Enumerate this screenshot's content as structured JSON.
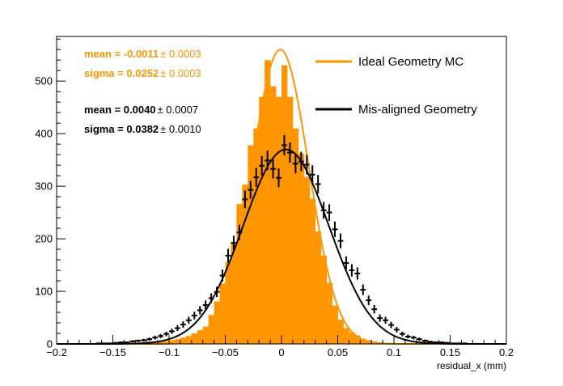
{
  "colors": {
    "ideal": "#ff9500",
    "misaligned": "#000000",
    "axis": "#000000",
    "background": "#ffffff"
  },
  "stats": {
    "ideal_mean": "mean = -0.0011",
    "ideal_mean_err": "± 0.0003",
    "ideal_sigma": "sigma = 0.0252",
    "ideal_sigma_err": "± 0.0003",
    "mis_mean": "mean = 0.0040",
    "mis_mean_err": "± 0.0007",
    "mis_sigma": "sigma = 0.0382",
    "mis_sigma_err": "± 0.0010"
  },
  "chart_data": {
    "type": "histogram",
    "xlabel": "residual_x (mm)",
    "ylabel": "",
    "xlim": [
      -0.2,
      0.2
    ],
    "ylim": [
      0,
      585
    ],
    "xticks": [
      "−0.2",
      "−0.15",
      "−0.1",
      "−0.05",
      "0",
      "0.05",
      "0.1",
      "0.15",
      "0.2"
    ],
    "xtick_values": [
      -0.2,
      -0.15,
      -0.1,
      -0.05,
      0,
      0.05,
      0.1,
      0.15,
      0.2
    ],
    "yticks": [
      "0",
      "100",
      "200",
      "300",
      "400",
      "500"
    ],
    "ytick_values": [
      0,
      100,
      200,
      300,
      400,
      500
    ],
    "grid": false,
    "legend_position": "top-right",
    "series": [
      {
        "name": "Ideal Geometry MC",
        "kind": "filled-histogram",
        "fit": {
          "mean": -0.0011,
          "sigma": 0.0252,
          "amplitude": 560
        },
        "x": [
          -0.1675,
          -0.1625,
          -0.1575,
          -0.1525,
          -0.1475,
          -0.1425,
          -0.1375,
          -0.1325,
          -0.1275,
          -0.1225,
          -0.1175,
          -0.1125,
          -0.1075,
          -0.1025,
          -0.0975,
          -0.0925,
          -0.0875,
          -0.0825,
          -0.0775,
          -0.0725,
          -0.0675,
          -0.0625,
          -0.0575,
          -0.0525,
          -0.0475,
          -0.0425,
          -0.0375,
          -0.0325,
          -0.0275,
          -0.0225,
          -0.0175,
          -0.0125,
          -0.0075,
          -0.0025,
          0.0025,
          0.0075,
          0.0125,
          0.0175,
          0.0225,
          0.0275,
          0.0325,
          0.0375,
          0.0425,
          0.0475,
          0.0525,
          0.0575,
          0.0625,
          0.0675,
          0.0725,
          0.0775,
          0.0825,
          0.0875,
          0.0925,
          0.0975,
          0.1025,
          0.1075,
          0.1125,
          0.1175,
          0.1225,
          0.1275,
          0.1325,
          0.1375,
          0.1425,
          0.1475,
          0.1525,
          0.1575,
          0.1625,
          0.1675
        ],
        "values": [
          0,
          0,
          0,
          0,
          0,
          0,
          1,
          1,
          2,
          2,
          3,
          3,
          4,
          5,
          7,
          9,
          12,
          15,
          20,
          26,
          33,
          55,
          81,
          115,
          156,
          194,
          266,
          303,
          378,
          410,
          470,
          540,
          490,
          470,
          530,
          470,
          410,
          362,
          318,
          276,
          214,
          168,
          116,
          73,
          46,
          30,
          22,
          16,
          10,
          7,
          5,
          3,
          2,
          2,
          1,
          1,
          0,
          0,
          0,
          0,
          0,
          0,
          0,
          0,
          0,
          0,
          0,
          0
        ]
      },
      {
        "name": "Mis-aligned Geometry",
        "kind": "points-with-errors",
        "fit": {
          "mean": 0.004,
          "sigma": 0.0382,
          "amplitude": 370
        },
        "x": [
          -0.1975,
          -0.1925,
          -0.1875,
          -0.1825,
          -0.1775,
          -0.1725,
          -0.1675,
          -0.1625,
          -0.1575,
          -0.1525,
          -0.1475,
          -0.1425,
          -0.1375,
          -0.1325,
          -0.1275,
          -0.1225,
          -0.1175,
          -0.1125,
          -0.1075,
          -0.1025,
          -0.0975,
          -0.0925,
          -0.0875,
          -0.0825,
          -0.0775,
          -0.0725,
          -0.0675,
          -0.0625,
          -0.0575,
          -0.0525,
          -0.0475,
          -0.0425,
          -0.0375,
          -0.0325,
          -0.0275,
          -0.0225,
          -0.0175,
          -0.0125,
          -0.0075,
          -0.0025,
          0.0025,
          0.0075,
          0.0125,
          0.0175,
          0.0225,
          0.0275,
          0.0325,
          0.0375,
          0.0425,
          0.0475,
          0.0525,
          0.0575,
          0.0625,
          0.0675,
          0.0725,
          0.0775,
          0.0825,
          0.0875,
          0.0925,
          0.0975,
          0.1025,
          0.1075,
          0.1125,
          0.1175,
          0.1225,
          0.1275,
          0.1325,
          0.1375,
          0.1425,
          0.1475,
          0.1525,
          0.1575,
          0.1625,
          0.1675,
          0.1725,
          0.1775,
          0.1825,
          0.1875,
          0.1925,
          0.1975
        ],
        "values": [
          0,
          0,
          0,
          0,
          0,
          0,
          0,
          1,
          1,
          1,
          2,
          3,
          3,
          5,
          6,
          7,
          9,
          12,
          15,
          19,
          24,
          30,
          37,
          45,
          54,
          64,
          74,
          87,
          99,
          130,
          168,
          192,
          212,
          275,
          293,
          317,
          339,
          349,
          333,
          316,
          378,
          364,
          343,
          347,
          341,
          322,
          304,
          254,
          250,
          218,
          196,
          154,
          140,
          134,
          103,
          83,
          66,
          49,
          45,
          36,
          27,
          19,
          14,
          12,
          9,
          6,
          4,
          3,
          3,
          2,
          1,
          1,
          1,
          0,
          0,
          0,
          0,
          0,
          0,
          0
        ],
        "errors": [
          0,
          0,
          0,
          0,
          0,
          0,
          0,
          1,
          1,
          1,
          1.4,
          1.7,
          1.7,
          2.2,
          2.4,
          2.6,
          3,
          3.5,
          3.9,
          4.4,
          4.9,
          5.5,
          6.1,
          6.7,
          7.3,
          8,
          8.6,
          9.3,
          9.9,
          11.4,
          13,
          13.9,
          14.6,
          16.6,
          17.1,
          17.8,
          18.4,
          18.7,
          18.2,
          17.8,
          19.4,
          19.1,
          18.5,
          18.6,
          18.5,
          17.9,
          17.4,
          15.9,
          15.8,
          14.8,
          14,
          12.4,
          11.8,
          11.6,
          10.1,
          9.1,
          8.1,
          7,
          6.7,
          6,
          5.2,
          4.4,
          3.7,
          3.5,
          3,
          2.4,
          2,
          1.7,
          1.7,
          1.4,
          1,
          1,
          1,
          0,
          0,
          0,
          0,
          0,
          0,
          0
        ]
      }
    ]
  }
}
